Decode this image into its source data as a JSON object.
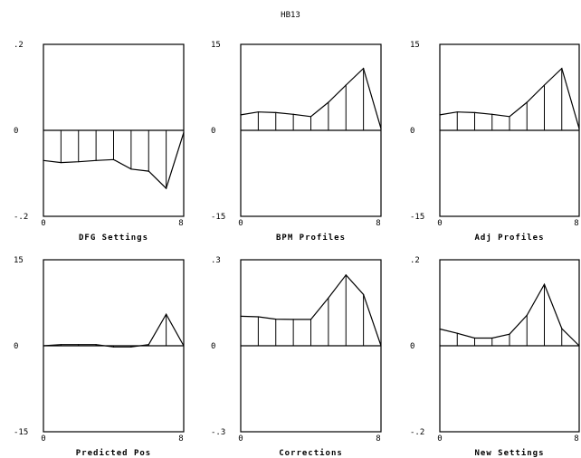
{
  "figure": {
    "title": "HB13"
  },
  "chart_data": [
    {
      "type": "line",
      "xlabel": "DFG Settings",
      "xticks": [
        "0",
        "8"
      ],
      "ylim": [
        -0.2,
        0.2
      ],
      "ytick_labels": [
        ".2",
        "0",
        "-.2"
      ],
      "x": [
        0,
        1,
        2,
        3,
        4,
        5,
        6,
        7,
        8
      ],
      "values": [
        -0.07,
        -0.075,
        -0.073,
        -0.07,
        -0.068,
        -0.09,
        -0.095,
        -0.135,
        -0.005
      ]
    },
    {
      "type": "line",
      "xlabel": "BPM Profiles",
      "xticks": [
        "0",
        "8"
      ],
      "ylim": [
        -15,
        15
      ],
      "ytick_labels": [
        "15",
        "0",
        "-15"
      ],
      "x": [
        0,
        1,
        2,
        3,
        4,
        5,
        6,
        7,
        8
      ],
      "values": [
        2.7,
        3.2,
        3.1,
        2.8,
        2.4,
        4.9,
        7.9,
        10.8,
        0.3
      ]
    },
    {
      "type": "line",
      "xlabel": "Adj Profiles",
      "xticks": [
        "0",
        "8"
      ],
      "ylim": [
        -15,
        15
      ],
      "ytick_labels": [
        "15",
        "0",
        "-15"
      ],
      "x": [
        0,
        1,
        2,
        3,
        4,
        5,
        6,
        7,
        8
      ],
      "values": [
        2.7,
        3.2,
        3.1,
        2.8,
        2.4,
        4.9,
        7.9,
        10.8,
        0.3
      ]
    },
    {
      "type": "line",
      "xlabel": "Predicted Pos",
      "xticks": [
        "0",
        "8"
      ],
      "ylim": [
        -15,
        15
      ],
      "ytick_labels": [
        "15",
        "0",
        "-15"
      ],
      "x": [
        0,
        1,
        2,
        3,
        4,
        5,
        6,
        7,
        8
      ],
      "values": [
        0.0,
        0.2,
        0.2,
        0.2,
        -0.2,
        -0.2,
        0.2,
        5.5,
        0.0
      ]
    },
    {
      "type": "line",
      "xlabel": "Corrections",
      "xticks": [
        "0",
        "8"
      ],
      "ylim": [
        -0.3,
        0.3
      ],
      "ytick_labels": [
        ".3",
        "0",
        "-.3"
      ],
      "x": [
        0,
        1,
        2,
        3,
        4,
        5,
        6,
        7,
        8
      ],
      "values": [
        0.103,
        0.101,
        0.093,
        0.092,
        0.092,
        0.167,
        0.247,
        0.179,
        0.0
      ]
    },
    {
      "type": "line",
      "xlabel": "New Settings",
      "xticks": [
        "0",
        "8"
      ],
      "ylim": [
        -0.2,
        0.2
      ],
      "ytick_labels": [
        ".2",
        "0",
        "-.2"
      ],
      "x": [
        0,
        1,
        2,
        3,
        4,
        5,
        6,
        7,
        8
      ],
      "values": [
        0.039,
        0.029,
        0.018,
        0.018,
        0.027,
        0.071,
        0.143,
        0.04,
        0.0
      ]
    }
  ]
}
